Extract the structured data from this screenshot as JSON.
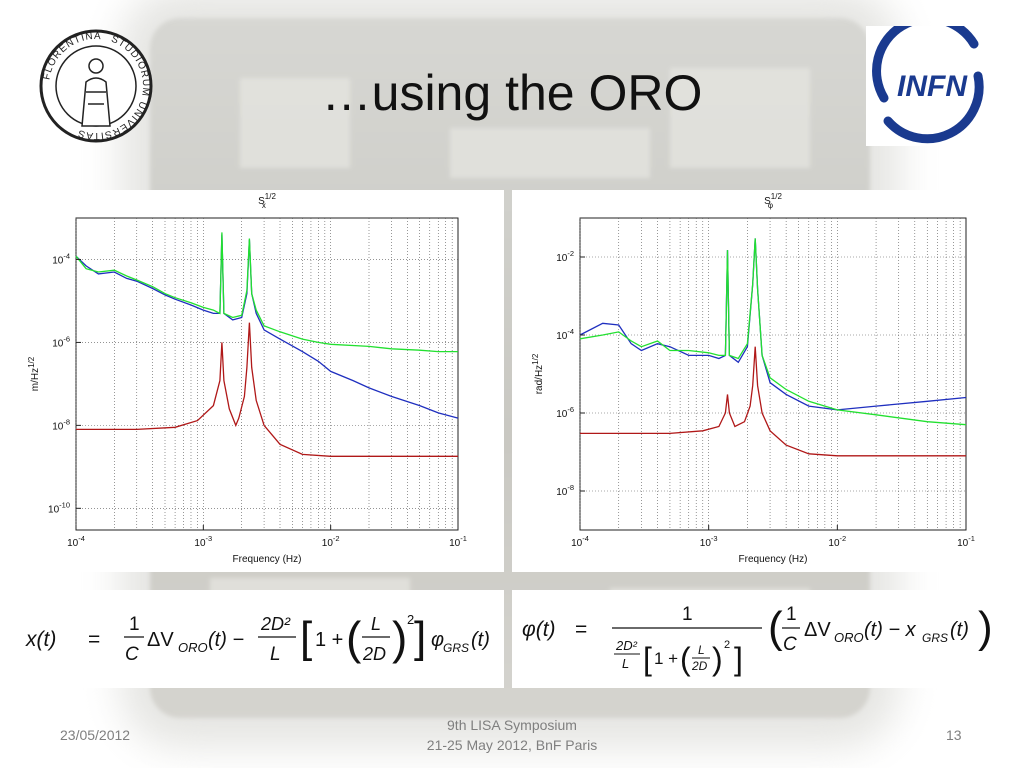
{
  "slide": {
    "title": "…using the ORO",
    "date": "23/05/2012",
    "conference_line1": "9th LISA Symposium",
    "conference_line2": "21-25 May 2012, BnF Paris",
    "page_number": "13"
  },
  "logos": {
    "left": {
      "text_top": "FLORENTINA",
      "text_mid": "STUDIORUM",
      "text_right": "UNIVERSITAS"
    },
    "right": {
      "text": "INFN",
      "color": "#1a3a8f"
    }
  },
  "equations": {
    "left": {
      "lhs": "x(t)",
      "eq": "=",
      "rhs": "(1/C)ΔV_ORO(t) − (2D²/L)[1 + (L/2D)²] φ_GRS(t)"
    },
    "right": {
      "lhs": "φ(t)",
      "eq": "=",
      "rhs": "1 / ((2D²/L)[1 + (L/2D)²]) · ((1/C)ΔV_ORO(t) − x_GRS(t))"
    }
  },
  "chart_data": [
    {
      "type": "line",
      "title": "S_x^1/2",
      "xlabel": "Frequency (Hz)",
      "ylabel": "m/Hz^1/2",
      "x_scale": "log",
      "y_scale": "log",
      "xlim": [
        0.0001,
        0.1
      ],
      "ylim": [
        3e-11,
        0.001
      ],
      "x_ticks": [
        {
          "v": 0.0001,
          "l": "10-4"
        },
        {
          "v": 0.001,
          "l": "10-3"
        },
        {
          "v": 0.01,
          "l": "10-2"
        },
        {
          "v": 0.1,
          "l": "10-1"
        }
      ],
      "y_ticks": [
        {
          "v": 1e-10,
          "l": "10-10"
        },
        {
          "v": 1e-08,
          "l": "10-8"
        },
        {
          "v": 1e-06,
          "l": "10-6"
        },
        {
          "v": 0.0001,
          "l": "10-4"
        }
      ],
      "grid": true,
      "series": [
        {
          "color": "#1f2fbf",
          "points": [
            [
              0.0001,
              0.00012
            ],
            [
              0.00012,
              7e-05
            ],
            [
              0.00015,
              4.5e-05
            ],
            [
              0.0002,
              5e-05
            ],
            [
              0.00025,
              3.5e-05
            ],
            [
              0.0003,
              3e-05
            ],
            [
              0.0004,
              2e-05
            ],
            [
              0.0005,
              1.4e-05
            ],
            [
              0.0006,
              1.1e-05
            ],
            [
              0.0008,
              8e-06
            ],
            [
              0.001,
              6e-06
            ],
            [
              0.0012,
              5e-06
            ],
            [
              0.00135,
              5e-06
            ],
            [
              0.0014,
              0.0004
            ],
            [
              0.00145,
              5e-06
            ],
            [
              0.0017,
              3.5e-06
            ],
            [
              0.002,
              4e-06
            ],
            [
              0.0022,
              1.5e-05
            ],
            [
              0.0023,
              0.0003
            ],
            [
              0.0024,
              1.5e-05
            ],
            [
              0.0026,
              5e-06
            ],
            [
              0.003,
              2e-06
            ],
            [
              0.004,
              1.2e-06
            ],
            [
              0.006,
              6e-07
            ],
            [
              0.008,
              3.5e-07
            ],
            [
              0.01,
              2e-07
            ],
            [
              0.015,
              1.2e-07
            ],
            [
              0.02,
              8e-08
            ],
            [
              0.03,
              5e-08
            ],
            [
              0.05,
              3e-08
            ],
            [
              0.07,
              2e-08
            ],
            [
              0.1,
              1.5e-08
            ]
          ]
        },
        {
          "color": "#22e030",
          "points": [
            [
              0.0001,
              0.00012
            ],
            [
              0.00012,
              6e-05
            ],
            [
              0.00015,
              5e-05
            ],
            [
              0.0002,
              5.5e-05
            ],
            [
              0.00025,
              4e-05
            ],
            [
              0.0003,
              3.2e-05
            ],
            [
              0.0004,
              2.2e-05
            ],
            [
              0.0005,
              1.5e-05
            ],
            [
              0.0006,
              1.2e-05
            ],
            [
              0.0008,
              9e-06
            ],
            [
              0.001,
              7e-06
            ],
            [
              0.0012,
              6e-06
            ],
            [
              0.00135,
              5e-06
            ],
            [
              0.0014,
              0.00045
            ],
            [
              0.00145,
              5e-06
            ],
            [
              0.0017,
              4e-06
            ],
            [
              0.002,
              4.5e-06
            ],
            [
              0.0022,
              1.8e-05
            ],
            [
              0.0023,
              0.00032
            ],
            [
              0.0024,
              1.5e-05
            ],
            [
              0.0026,
              6e-06
            ],
            [
              0.003,
              2.5e-06
            ],
            [
              0.004,
              1.8e-06
            ],
            [
              0.006,
              1.2e-06
            ],
            [
              0.008,
              1e-06
            ],
            [
              0.01,
              9e-07
            ],
            [
              0.02,
              8e-07
            ],
            [
              0.03,
              7e-07
            ],
            [
              0.05,
              6.5e-07
            ],
            [
              0.07,
              6e-07
            ],
            [
              0.1,
              6e-07
            ]
          ]
        },
        {
          "color": "#b01818",
          "points": [
            [
              0.0001,
              8e-09
            ],
            [
              0.0003,
              8e-09
            ],
            [
              0.0006,
              9e-09
            ],
            [
              0.0009,
              1.3e-08
            ],
            [
              0.0012,
              3e-08
            ],
            [
              0.00135,
              1.2e-07
            ],
            [
              0.0014,
              1e-06
            ],
            [
              0.00145,
              1.2e-07
            ],
            [
              0.0016,
              2.5e-08
            ],
            [
              0.0018,
              1e-08
            ],
            [
              0.0019,
              1.5e-08
            ],
            [
              0.0021,
              5e-08
            ],
            [
              0.0022,
              2.5e-07
            ],
            [
              0.0023,
              3e-06
            ],
            [
              0.0024,
              2.5e-07
            ],
            [
              0.0026,
              4e-08
            ],
            [
              0.003,
              1e-08
            ],
            [
              0.004,
              3.5e-09
            ],
            [
              0.006,
              2e-09
            ],
            [
              0.01,
              1.8e-09
            ],
            [
              0.03,
              1.8e-09
            ],
            [
              0.1,
              1.8e-09
            ]
          ]
        }
      ]
    },
    {
      "type": "line",
      "title": "S_φ^1/2",
      "xlabel": "Frequency (Hz)",
      "ylabel": "rad/Hz^1/2",
      "x_scale": "log",
      "y_scale": "log",
      "xlim": [
        0.0001,
        0.1
      ],
      "ylim": [
        1e-09,
        0.1
      ],
      "x_ticks": [
        {
          "v": 0.0001,
          "l": "10-4"
        },
        {
          "v": 0.001,
          "l": "10-3"
        },
        {
          "v": 0.01,
          "l": "10-2"
        },
        {
          "v": 0.1,
          "l": "10-1"
        }
      ],
      "y_ticks": [
        {
          "v": 1e-08,
          "l": "10-8"
        },
        {
          "v": 1e-06,
          "l": "10-6"
        },
        {
          "v": 0.0001,
          "l": "10-4"
        },
        {
          "v": 0.01,
          "l": "10-2"
        }
      ],
      "grid": true,
      "series": [
        {
          "color": "#1f2fbf",
          "points": [
            [
              0.0001,
              0.0001
            ],
            [
              0.00015,
              0.0002
            ],
            [
              0.0002,
              0.00018
            ],
            [
              0.00025,
              6e-05
            ],
            [
              0.0003,
              4e-05
            ],
            [
              0.0004,
              6e-05
            ],
            [
              0.0005,
              5e-05
            ],
            [
              0.0007,
              3e-05
            ],
            [
              0.001,
              3e-05
            ],
            [
              0.0012,
              2.5e-05
            ],
            [
              0.00135,
              3e-05
            ],
            [
              0.0014,
              0.015
            ],
            [
              0.00145,
              3e-05
            ],
            [
              0.0017,
              2e-05
            ],
            [
              0.002,
              5e-05
            ],
            [
              0.0022,
              0.002
            ],
            [
              0.0023,
              0.03
            ],
            [
              0.0024,
              0.0015
            ],
            [
              0.0026,
              3e-05
            ],
            [
              0.003,
              6e-06
            ],
            [
              0.004,
              3e-06
            ],
            [
              0.006,
              1.5e-06
            ],
            [
              0.01,
              1.2e-06
            ],
            [
              0.02,
              1.5e-06
            ],
            [
              0.05,
              2e-06
            ],
            [
              0.1,
              2.5e-06
            ]
          ]
        },
        {
          "color": "#22e030",
          "points": [
            [
              0.0001,
              8e-05
            ],
            [
              0.00015,
              0.0001
            ],
            [
              0.0002,
              0.00012
            ],
            [
              0.00025,
              7e-05
            ],
            [
              0.0003,
              5e-05
            ],
            [
              0.0004,
              7e-05
            ],
            [
              0.0005,
              4e-05
            ],
            [
              0.0007,
              4e-05
            ],
            [
              0.001,
              3.5e-05
            ],
            [
              0.0012,
              3e-05
            ],
            [
              0.00135,
              3e-05
            ],
            [
              0.0014,
              0.015
            ],
            [
              0.00145,
              3e-05
            ],
            [
              0.0017,
              2.5e-05
            ],
            [
              0.002,
              6e-05
            ],
            [
              0.0022,
              0.002
            ],
            [
              0.0023,
              0.03
            ],
            [
              0.0024,
              0.0015
            ],
            [
              0.0026,
              3e-05
            ],
            [
              0.003,
              8e-06
            ],
            [
              0.004,
              4e-06
            ],
            [
              0.006,
              2e-06
            ],
            [
              0.01,
              1.2e-06
            ],
            [
              0.02,
              9e-07
            ],
            [
              0.05,
              6e-07
            ],
            [
              0.1,
              5e-07
            ]
          ]
        },
        {
          "color": "#b01818",
          "points": [
            [
              0.0001,
              3e-07
            ],
            [
              0.0005,
              3e-07
            ],
            [
              0.0009,
              3.5e-07
            ],
            [
              0.0012,
              4.5e-07
            ],
            [
              0.00135,
              1e-06
            ],
            [
              0.0014,
              3e-06
            ],
            [
              0.00145,
              1e-06
            ],
            [
              0.0016,
              4.5e-07
            ],
            [
              0.0019,
              6e-07
            ],
            [
              0.0021,
              1.5e-06
            ],
            [
              0.0022,
              5e-06
            ],
            [
              0.0023,
              5e-05
            ],
            [
              0.0024,
              5e-06
            ],
            [
              0.0026,
              1e-06
            ],
            [
              0.003,
              3.5e-07
            ],
            [
              0.004,
              1.5e-07
            ],
            [
              0.006,
              9e-08
            ],
            [
              0.01,
              8e-08
            ],
            [
              0.03,
              8e-08
            ],
            [
              0.1,
              8e-08
            ]
          ]
        }
      ]
    }
  ]
}
